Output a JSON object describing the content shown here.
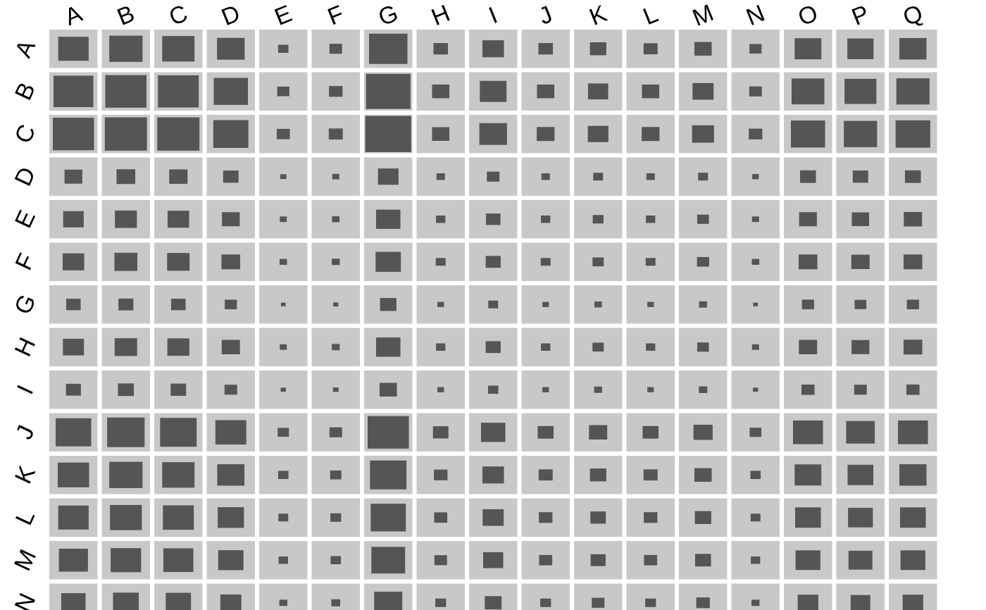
{
  "chart_data": {
    "type": "heatmap",
    "title": "",
    "xlabel": "",
    "ylabel": "",
    "x_labels": [
      "A",
      "B",
      "C",
      "D",
      "E",
      "F",
      "G",
      "H",
      "I",
      "J",
      "K",
      "L",
      "M",
      "N",
      "O",
      "P",
      "Q"
    ],
    "y_labels": [
      "A",
      "B",
      "C",
      "D",
      "E",
      "F",
      "G",
      "H",
      "I",
      "J",
      "K",
      "L",
      "M",
      "N"
    ],
    "cell_encoding": "square-size",
    "value_range": [
      0,
      1
    ],
    "values": [
      [
        0.65,
        0.71,
        0.69,
        0.59,
        0.22,
        0.27,
        0.82,
        0.31,
        0.46,
        0.31,
        0.35,
        0.3,
        0.37,
        0.26,
        0.57,
        0.56,
        0.58
      ],
      [
        0.85,
        0.88,
        0.87,
        0.73,
        0.26,
        0.29,
        0.95,
        0.37,
        0.57,
        0.37,
        0.43,
        0.37,
        0.45,
        0.27,
        0.7,
        0.68,
        0.71
      ],
      [
        0.88,
        0.9,
        0.9,
        0.75,
        0.28,
        0.3,
        0.98,
        0.37,
        0.59,
        0.38,
        0.44,
        0.38,
        0.47,
        0.29,
        0.73,
        0.71,
        0.74
      ],
      [
        0.38,
        0.4,
        0.39,
        0.33,
        0.13,
        0.15,
        0.44,
        0.18,
        0.27,
        0.18,
        0.21,
        0.18,
        0.21,
        0.14,
        0.34,
        0.33,
        0.34
      ],
      [
        0.44,
        0.47,
        0.46,
        0.38,
        0.15,
        0.16,
        0.52,
        0.2,
        0.31,
        0.2,
        0.23,
        0.2,
        0.25,
        0.15,
        0.38,
        0.37,
        0.39
      ],
      [
        0.46,
        0.49,
        0.48,
        0.4,
        0.16,
        0.17,
        0.54,
        0.21,
        0.32,
        0.21,
        0.24,
        0.21,
        0.26,
        0.16,
        0.4,
        0.39,
        0.4
      ],
      [
        0.31,
        0.32,
        0.31,
        0.26,
        0.1,
        0.11,
        0.35,
        0.14,
        0.21,
        0.14,
        0.16,
        0.14,
        0.17,
        0.1,
        0.26,
        0.25,
        0.26
      ],
      [
        0.45,
        0.48,
        0.47,
        0.39,
        0.15,
        0.17,
        0.52,
        0.2,
        0.32,
        0.2,
        0.24,
        0.2,
        0.25,
        0.15,
        0.39,
        0.38,
        0.4
      ],
      [
        0.32,
        0.34,
        0.33,
        0.27,
        0.11,
        0.12,
        0.37,
        0.14,
        0.22,
        0.14,
        0.17,
        0.14,
        0.18,
        0.11,
        0.28,
        0.27,
        0.28
      ],
      [
        0.76,
        0.8,
        0.78,
        0.66,
        0.24,
        0.27,
        0.88,
        0.33,
        0.52,
        0.34,
        0.39,
        0.34,
        0.41,
        0.25,
        0.64,
        0.61,
        0.64
      ],
      [
        0.67,
        0.71,
        0.69,
        0.58,
        0.22,
        0.24,
        0.78,
        0.29,
        0.46,
        0.3,
        0.35,
        0.3,
        0.37,
        0.22,
        0.57,
        0.55,
        0.58
      ],
      [
        0.65,
        0.68,
        0.66,
        0.56,
        0.21,
        0.23,
        0.75,
        0.28,
        0.45,
        0.29,
        0.33,
        0.29,
        0.35,
        0.21,
        0.55,
        0.53,
        0.55
      ],
      [
        0.62,
        0.65,
        0.64,
        0.54,
        0.2,
        0.22,
        0.72,
        0.27,
        0.43,
        0.28,
        0.32,
        0.28,
        0.34,
        0.2,
        0.53,
        0.51,
        0.53
      ],
      [
        0.52,
        0.55,
        0.54,
        0.45,
        0.17,
        0.19,
        0.6,
        0.23,
        0.36,
        0.23,
        0.27,
        0.23,
        0.29,
        0.17,
        0.44,
        0.42,
        0.44
      ]
    ],
    "colors": {
      "cell_background": "#c8c8c8",
      "square_fill": "#555555",
      "label_color": "#000000",
      "page_background": "#ffffff"
    },
    "grid": false,
    "legend": "none"
  }
}
